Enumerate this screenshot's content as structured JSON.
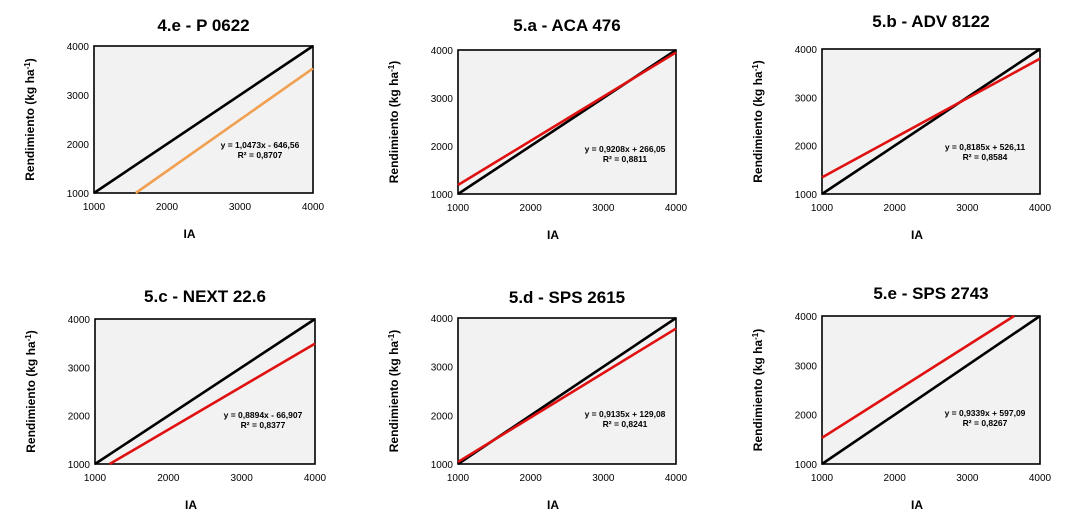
{
  "chart_data": [
    {
      "type": "line",
      "title": "4.e - P 0622",
      "xlabel": "IA",
      "ylabel": "Rendimiento (kg ha",
      "ylabel_sup": "-1",
      "ylabel_end": ")",
      "xlim": [
        1000,
        4000
      ],
      "ylim": [
        1000,
        4000
      ],
      "xticks": [
        "1000",
        "2000",
        "3000",
        "4000"
      ],
      "yticks": [
        "1000",
        "2000",
        "3000",
        "4000"
      ],
      "slope": 1.0473,
      "intercept": -646.56,
      "fit_color": "#f0a050",
      "equation": "y = 1,0473x - 646,56",
      "r2": "R² = 0,8707"
    },
    {
      "type": "line",
      "title": "5.a - ACA 476",
      "xlabel": "IA",
      "ylabel": "Rendimiento (kg ha",
      "ylabel_sup": "-1",
      "ylabel_end": ")",
      "xlim": [
        1000,
        4000
      ],
      "ylim": [
        1000,
        4000
      ],
      "xticks": [
        "1000",
        "2000",
        "3000",
        "4000"
      ],
      "yticks": [
        "1000",
        "2000",
        "3000",
        "4000"
      ],
      "slope": 0.9208,
      "intercept": 266.05,
      "fit_color": "#e01010",
      "equation": "y = 0,9208x + 266,05",
      "r2": "R² = 0,8811"
    },
    {
      "type": "line",
      "title": "5.b - ADV 8122",
      "xlabel": "IA",
      "ylabel": "Rendimiento (kg ha",
      "ylabel_sup": "-1",
      "ylabel_end": ")",
      "xlim": [
        1000,
        4000
      ],
      "ylim": [
        1000,
        4000
      ],
      "xticks": [
        "1000",
        "2000",
        "3000",
        "4000"
      ],
      "yticks": [
        "1000",
        "2000",
        "3000",
        "4000"
      ],
      "slope": 0.8185,
      "intercept": 526.11,
      "fit_color": "#e01010",
      "equation": "y = 0,8185x + 526,11",
      "r2": "R² = 0,8584"
    },
    {
      "type": "line",
      "title": "5.c - NEXT 22.6",
      "xlabel": "IA",
      "ylabel": "Rendimiento (kg ha",
      "ylabel_sup": "-1",
      "ylabel_end": ")",
      "xlim": [
        1000,
        4000
      ],
      "ylim": [
        1000,
        4000
      ],
      "xticks": [
        "1000",
        "2000",
        "3000",
        "4000"
      ],
      "yticks": [
        "1000",
        "2000",
        "3000",
        "4000"
      ],
      "slope": 0.8894,
      "intercept": -66.907,
      "fit_color": "#e01010",
      "equation": "y = 0,8894x - 66,907",
      "r2": "R² = 0,8377"
    },
    {
      "type": "line",
      "title": "5.d - SPS 2615",
      "xlabel": "IA",
      "ylabel": "Rendimiento (kg ha",
      "ylabel_sup": "-1",
      "ylabel_end": ")",
      "xlim": [
        1000,
        4000
      ],
      "ylim": [
        1000,
        4000
      ],
      "xticks": [
        "1000",
        "2000",
        "3000",
        "4000"
      ],
      "yticks": [
        "1000",
        "2000",
        "3000",
        "4000"
      ],
      "slope": 0.9135,
      "intercept": 129.08,
      "fit_color": "#e01010",
      "equation": "y = 0,9135x + 129,08",
      "r2": "R² = 0,8241"
    },
    {
      "type": "line",
      "title": "5.e - SPS 2743",
      "xlabel": "IA",
      "ylabel": "Rendimiento (kg ha",
      "ylabel_sup": "-1",
      "ylabel_end": ")",
      "xlim": [
        1000,
        4000
      ],
      "ylim": [
        1000,
        4000
      ],
      "xticks": [
        "1000",
        "2000",
        "3000",
        "4000"
      ],
      "yticks": [
        "1000",
        "2000",
        "3000",
        "4000"
      ],
      "slope": 0.9339,
      "intercept": 597.09,
      "fit_color": "#e01010",
      "equation": "y = 0,9339x + 597,09",
      "r2": "R² = 0,8267"
    }
  ]
}
